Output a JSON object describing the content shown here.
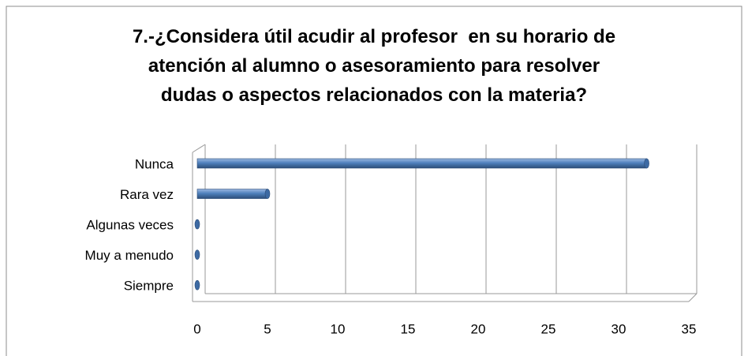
{
  "chart_data": {
    "type": "bar",
    "orientation": "horizontal",
    "title": "7.-¿Considera útil acudir al profesor  en su horario de\natención al alumno o asesoramiento para resolver\ndudas o aspectos relacionados con la materia?",
    "categories": [
      "Nunca",
      "Rara vez",
      "Algunas veces",
      "Muy a menudo",
      "Siempre"
    ],
    "values": [
      32,
      5,
      0,
      0,
      0
    ],
    "color": "#4f81bd",
    "xlim": [
      0,
      35
    ],
    "xticks": [
      0,
      5,
      10,
      15,
      20,
      25,
      30,
      35
    ],
    "grid": true
  }
}
